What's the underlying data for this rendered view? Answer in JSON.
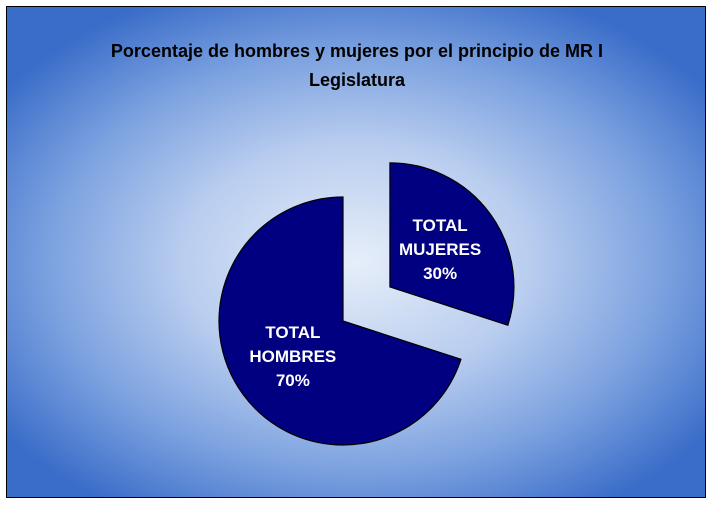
{
  "chart_data": {
    "type": "pie",
    "title": "Porcentaje de hombres y mujeres por el principio de MR I Legislatura",
    "categories": [
      "TOTAL MUJERES",
      "TOTAL HOMBRES"
    ],
    "values": [
      30,
      70
    ],
    "value_labels": [
      "30%",
      "70%"
    ],
    "color": "#000080"
  }
}
